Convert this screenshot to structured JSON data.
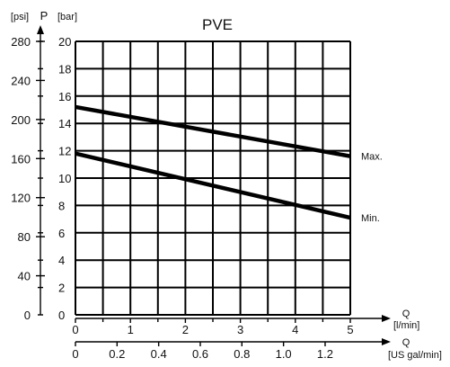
{
  "chart_data": {
    "type": "line",
    "title": "PVE",
    "y_axis": {
      "symbol": "P",
      "unit_psi": "[psi]",
      "unit_bar": "[bar]",
      "bar_ticks": [
        "0",
        "2",
        "4",
        "6",
        "8",
        "10",
        "12",
        "14",
        "16",
        "18",
        "20"
      ],
      "psi_ticks": [
        "0",
        "40",
        "80",
        "120",
        "160",
        "200",
        "240",
        "280"
      ],
      "ylim_bar": [
        0,
        20
      ],
      "psi_per_bar": 14.0
    },
    "x_axis": {
      "symbol_lmin": "Q",
      "unit_lmin": "[l/min]",
      "lmin_ticks": [
        "0",
        "1",
        "2",
        "3",
        "4",
        "5"
      ],
      "xlim_lmin": [
        0,
        5
      ],
      "symbol_gal": "Q",
      "unit_gal": "[US gal/min]",
      "gal_ticks": [
        "0",
        "0.2",
        "0.4",
        "0.6",
        "0.8",
        "1.0",
        "1.2"
      ],
      "lmin_per_usgal": 3.785
    },
    "grid": true,
    "series": [
      {
        "name": "Max.",
        "x": [
          0,
          5
        ],
        "values": [
          15.2,
          11.6
        ]
      },
      {
        "name": "Min.",
        "x": [
          0,
          5
        ],
        "values": [
          11.8,
          7.1
        ]
      }
    ]
  }
}
